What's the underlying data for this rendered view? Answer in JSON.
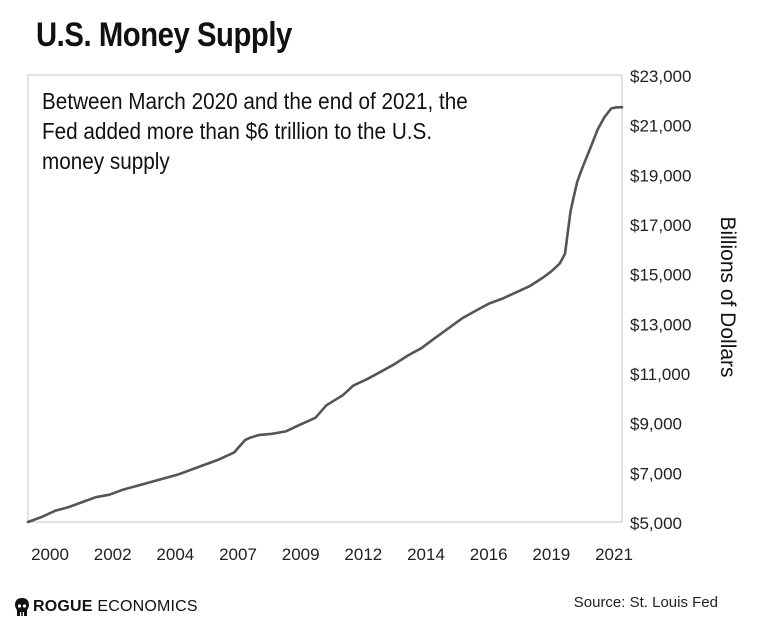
{
  "title": "U.S. Money Supply",
  "annotation": "Between March 2020 and the end of 2021, the Fed added more than $6 trillion to the U.S. money supply",
  "source": "Source: St. Louis Fed",
  "logo": {
    "strong": "ROGUE",
    "rest": " ECONOMICS",
    "icon": "rogue-logo-icon"
  },
  "colors": {
    "line": "#555555",
    "frame": "#d0d0d0",
    "text": "#111111"
  },
  "chart_data": {
    "type": "line",
    "title": "U.S. Money Supply",
    "ylabel": "Billions of Dollars",
    "xlabel": "",
    "y_axis_side": "right",
    "ylim": [
      5000,
      23000
    ],
    "xlim": [
      2000,
      2021.9
    ],
    "grid": false,
    "legend": "none",
    "x_tick_labels": [
      "2000",
      "2002",
      "2004",
      "2007",
      "2009",
      "2012",
      "2014",
      "2016",
      "2019",
      "2021"
    ],
    "y_tick_labels": [
      "$23,000",
      "$21,000",
      "$19,000",
      "$17,000",
      "$15,000",
      "$13,000",
      "$11,000",
      "$9,000",
      "$7,000",
      "$5,000"
    ],
    "series": [
      {
        "name": "",
        "x": [
          2000.0,
          2000.5,
          2001.0,
          2001.5,
          2002.0,
          2002.5,
          2003.0,
          2003.5,
          2004.0,
          2004.5,
          2005.0,
          2005.5,
          2006.0,
          2006.5,
          2007.0,
          2007.3,
          2007.6,
          2008.0,
          2008.2,
          2008.5,
          2009.0,
          2009.5,
          2010.0,
          2010.3,
          2010.6,
          2011.0,
          2011.3,
          2011.6,
          2012.0,
          2012.5,
          2013.0,
          2013.5,
          2014.0,
          2014.5,
          2015.0,
          2015.5,
          2016.0,
          2016.5,
          2017.0,
          2017.5,
          2018.0,
          2018.5,
          2019.0,
          2019.3,
          2019.6,
          2019.8,
          2020.0,
          2020.1,
          2020.25,
          2020.45,
          2020.75,
          2021.0,
          2021.25,
          2021.5,
          2021.7,
          2021.9
        ],
        "values": [
          5000,
          5200,
          5450,
          5600,
          5800,
          6000,
          6100,
          6300,
          6450,
          6600,
          6750,
          6900,
          7100,
          7300,
          7500,
          7650,
          7800,
          8300,
          8400,
          8500,
          8550,
          8650,
          8900,
          9050,
          9200,
          9700,
          9900,
          10100,
          10500,
          10750,
          11050,
          11350,
          11700,
          12000,
          12400,
          12800,
          13200,
          13500,
          13800,
          14000,
          14250,
          14500,
          14850,
          15100,
          15400,
          15800,
          17500,
          18000,
          18700,
          19300,
          20100,
          20800,
          21300,
          21650,
          21700,
          21700
        ]
      }
    ]
  }
}
